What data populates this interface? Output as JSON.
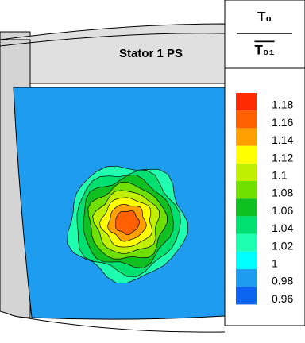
{
  "chart_data": {
    "type": "contour",
    "title": "Stator 1 PS",
    "legend_numerator": "T₀",
    "legend_denominator": "T₀₁",
    "levels": [
      0.96,
      0.98,
      1,
      1.02,
      1.04,
      1.06,
      1.08,
      1.1,
      1.12,
      1.14,
      1.16,
      1.18
    ],
    "colors": [
      "#1a1ae0",
      "#0a64f0",
      "#1e9cf0",
      "#00ffff",
      "#1effb0",
      "#00e070",
      "#10c020",
      "#70e000",
      "#c0f000",
      "#ffff00",
      "#ffa000",
      "#ff6000",
      "#ff2a00"
    ],
    "background_level": 1
  }
}
